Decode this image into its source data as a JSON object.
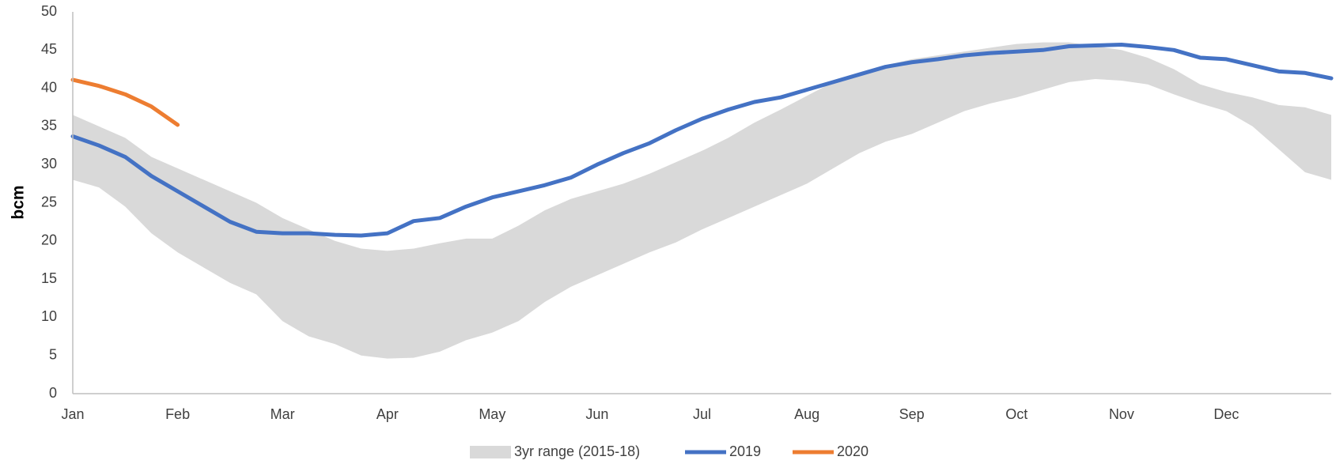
{
  "chart_data": {
    "type": "line",
    "y_label": "bcm",
    "categories": [
      "Jan",
      null,
      null,
      null,
      "Feb",
      null,
      null,
      null,
      "Mar",
      null,
      null,
      null,
      "Apr",
      null,
      null,
      null,
      "May",
      null,
      null,
      null,
      "Jun",
      null,
      null,
      null,
      "Jul",
      null,
      null,
      null,
      "Aug",
      null,
      null,
      null,
      "Sep",
      null,
      null,
      null,
      "Oct",
      null,
      null,
      null,
      "Nov",
      null,
      null,
      null,
      "Dec",
      null,
      null,
      null,
      null
    ],
    "series": [
      {
        "name": "3yr range (2015-18)",
        "color": "#d9d9d9",
        "kind": "range",
        "low": [
          28,
          27,
          24.5,
          21,
          18.5,
          16.5,
          14.5,
          13,
          9.5,
          7.5,
          6.5,
          5,
          4.6,
          4.7,
          5.5,
          7,
          8,
          9.5,
          12,
          14,
          15.5,
          17,
          18.5,
          19.8,
          21.5,
          23,
          24.5,
          26,
          27.5,
          29.5,
          31.5,
          33,
          34,
          35.5,
          37,
          38,
          38.8,
          39.8,
          40.8,
          41.2,
          41,
          40.5,
          39.2,
          38,
          37,
          35,
          32,
          29,
          28
        ],
        "high": [
          36.5,
          35,
          33.5,
          31,
          29.5,
          28,
          26.5,
          25,
          23,
          21.5,
          20,
          19,
          18.7,
          19,
          19.7,
          20.3,
          20.3,
          22,
          24,
          25.5,
          26.5,
          27.5,
          28.8,
          30.3,
          31.8,
          33.5,
          35.5,
          37.2,
          39,
          40.8,
          42,
          43,
          43.8,
          44.3,
          44.8,
          45.3,
          45.8,
          46,
          46,
          45.5,
          45,
          44,
          42.5,
          40.5,
          39.5,
          38.8,
          37.8,
          37.5,
          36.5
        ]
      },
      {
        "name": "2019",
        "color": "#4472c4",
        "values": [
          33.7,
          32.5,
          31,
          28.5,
          26.5,
          24.5,
          22.5,
          21.2,
          21,
          21,
          20.8,
          20.7,
          21,
          22.6,
          23,
          24.5,
          25.7,
          26.5,
          27.3,
          28.3,
          30,
          31.5,
          32.8,
          34.5,
          36,
          37.2,
          38.2,
          38.8,
          39.8,
          40.8,
          41.8,
          42.8,
          43.4,
          43.8,
          44.3,
          44.6,
          44.8,
          45,
          45.5,
          45.6,
          45.7,
          45.4,
          45,
          44,
          43.8,
          43,
          42.2,
          42,
          41.3
        ]
      },
      {
        "name": "2020",
        "color": "#ed7d31",
        "values": [
          41.1,
          40.3,
          39.2,
          37.6,
          35.2,
          null,
          null,
          null,
          null,
          null,
          null,
          null,
          null,
          null,
          null,
          null,
          null,
          null,
          null,
          null,
          null,
          null,
          null,
          null,
          null,
          null,
          null,
          null,
          null,
          null,
          null,
          null,
          null,
          null,
          null,
          null,
          null,
          null,
          null,
          null,
          null,
          null,
          null,
          null,
          null,
          null,
          null,
          null,
          null
        ]
      }
    ],
    "ylim": [
      0,
      50
    ],
    "yticks": [
      0,
      5,
      10,
      15,
      20,
      25,
      30,
      35,
      40,
      45,
      50
    ],
    "grid": false,
    "legend": "bottom"
  }
}
